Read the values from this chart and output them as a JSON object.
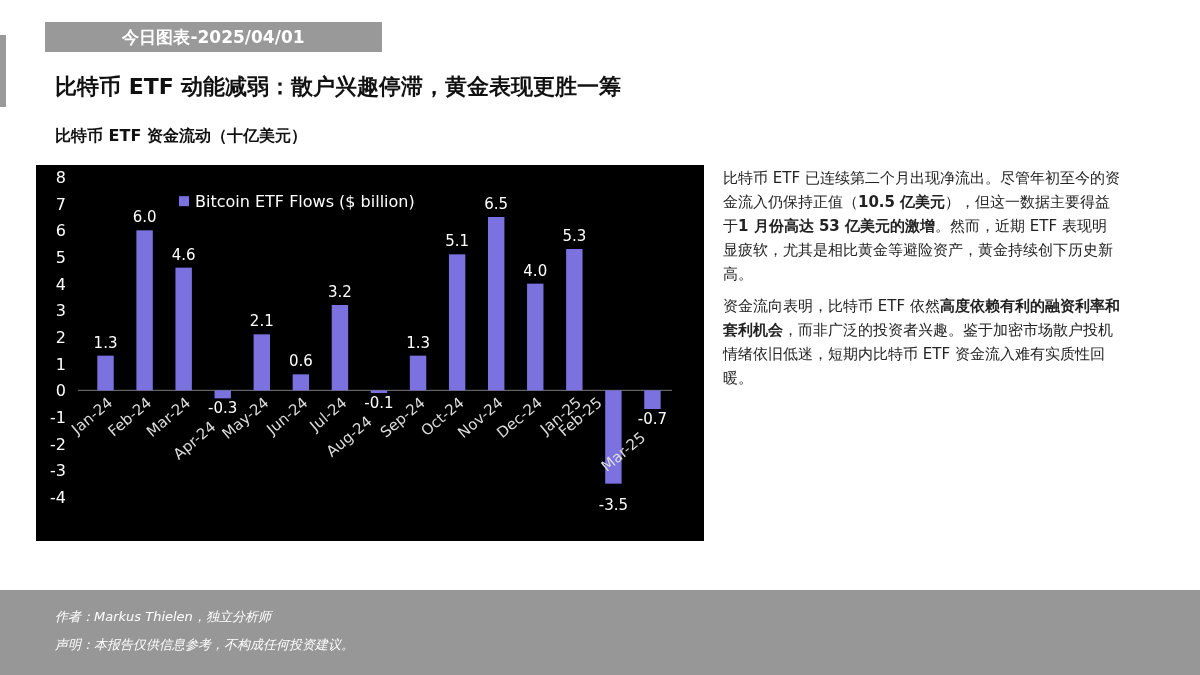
{
  "chart_data": {
    "type": "bar",
    "title": "比特币 ETF 动能减弱：散户兴趣停滞，黄金表现更胜一筹",
    "subtitle": "比特币 ETF 资金流动（十亿美元）",
    "categories": [
      "Jan-24",
      "Feb-24",
      "Mar-24",
      "Apr-24",
      "May-24",
      "Jun-24",
      "Jul-24",
      "Aug-24",
      "Sep-24",
      "Oct-24",
      "Nov-24",
      "Dec-24",
      "Jan-25",
      "Feb-25",
      "Mar-25"
    ],
    "series": [
      {
        "name": "Bitcoin ETF Flows ($ billion)",
        "color": "#7b72e0",
        "values": [
          1.3,
          6.0,
          4.6,
          -0.3,
          2.1,
          0.6,
          3.2,
          -0.1,
          1.3,
          5.1,
          6.5,
          4.0,
          5.3,
          -3.5,
          -0.7
        ],
        "value_labels": [
          "1.3",
          "6.0",
          "4.6",
          "-0.3",
          "2.1",
          "0.6",
          "3.2",
          "-0.1",
          "1.3",
          "5.1",
          "6.5",
          "4.0",
          "5.3",
          "-3.5",
          "-0.7"
        ]
      }
    ],
    "ylim": [
      -4,
      8
    ],
    "yticks": [
      -4,
      -3,
      -2,
      -1,
      0,
      1,
      2,
      3,
      4,
      5,
      6,
      7,
      8
    ],
    "legend": "top left",
    "annotations": [
      "今日图表-2025/04/01",
      "比特币 ETF 已连续第二个月出现净流出。尽管年初至今的资金流入仍保持正值（**10.5 亿美元**），但这一数据主要得益于**1 月份高达 53 亿美元的激增**。然而，近期 ETF 表现明显疲软，尤其是相比黄金等避险资产，黄金持续创下历史新高。",
      "资金流向表明，比特币 ETF 依然**高度依赖有利的融资利率和套利机会**，而非广泛的投资者兴趣。鉴于加密市场散户投机情绪依旧低迷，短期内比特币 ETF 资金流入难有实质性回暖。",
      "作者：Markus Thielen，独立分析师",
      "声明：本报告仅供信息参考，不构成任何投资建议。"
    ]
  }
}
